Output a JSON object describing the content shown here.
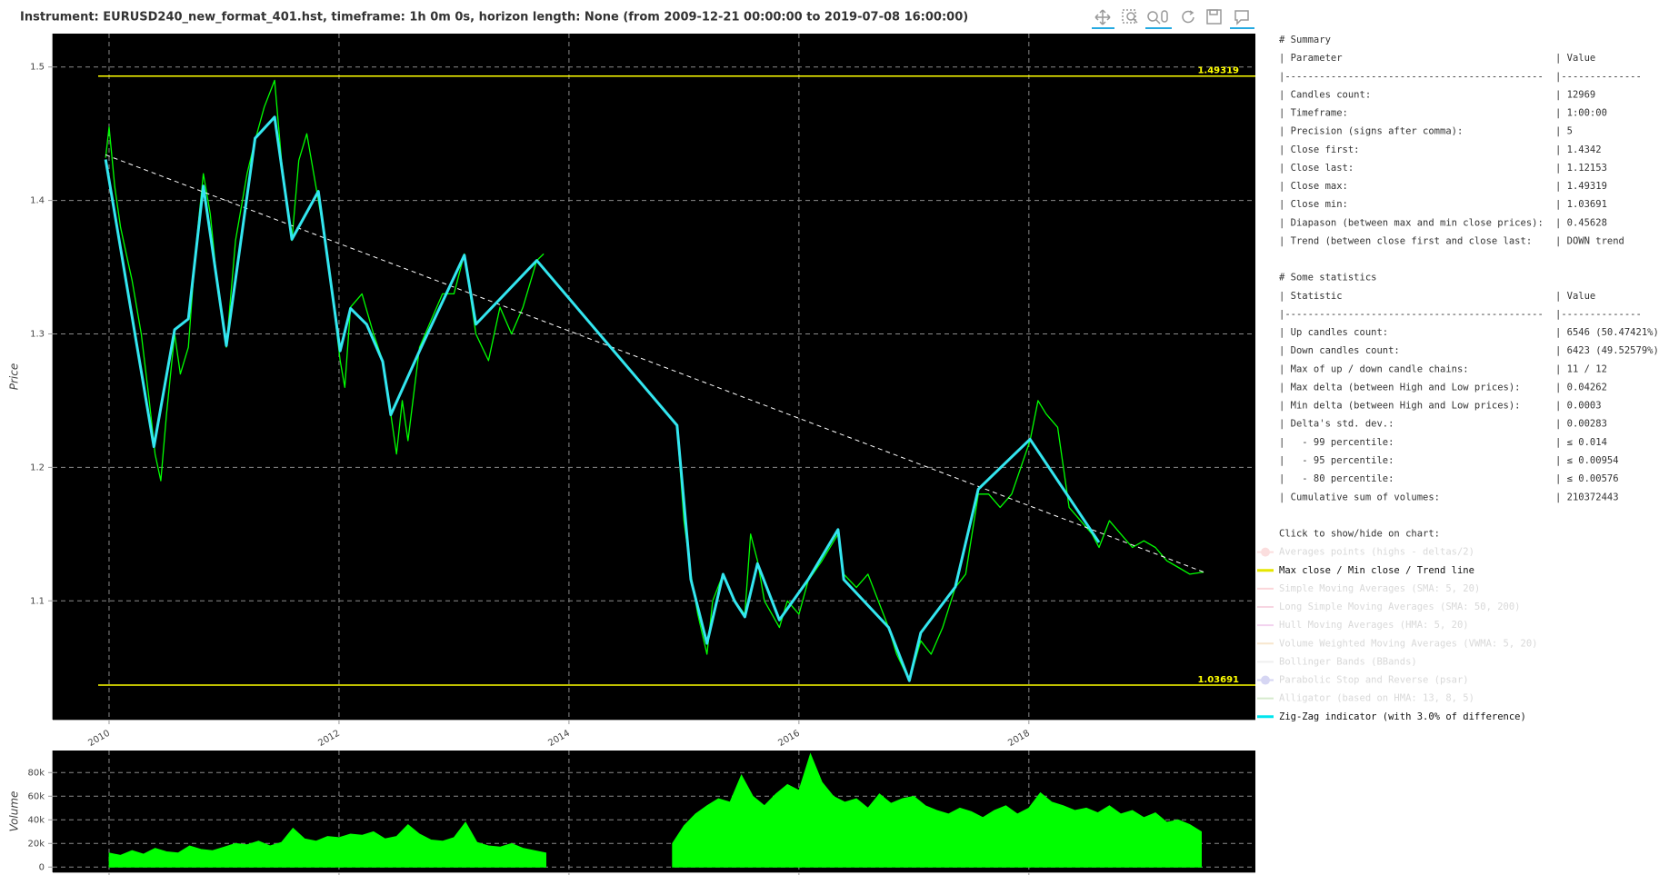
{
  "title": "Instrument: EURUSD240_new_format_401.hst, timeframe: 1h 0m 0s, horizon length: None (from 2009-12-21 00:00:00 to 2019-07-08 16:00:00)",
  "chart_data": [
    {
      "type": "line",
      "y_label": "Price",
      "background": "#000000",
      "grid": true,
      "show_xtick_labels": true,
      "xlim": [
        2009.51,
        2019.97
      ],
      "ylim": [
        1.011,
        1.525
      ],
      "xticks": [
        2010,
        2012,
        2014,
        2016,
        2018
      ],
      "yticks": [
        1.1,
        1.2,
        1.3,
        1.4,
        1.5
      ],
      "hlines": [
        {
          "value": 1.49319,
          "color": "#ffff00"
        },
        {
          "value": 1.03691,
          "color": "#ffff00"
        }
      ],
      "series": [
        {
          "color": "#00ff00",
          "line_width": 1.3,
          "x": [
            2009.97,
            2010.0,
            2010.05,
            2010.1,
            2010.15,
            2010.2,
            2010.28,
            2010.35,
            2010.4,
            2010.45,
            2010.5,
            2010.57,
            2010.62,
            2010.69,
            2010.75,
            2010.82,
            2010.88,
            2010.95,
            2011.02,
            2011.1,
            2011.2,
            2011.27,
            2011.35,
            2011.44,
            2011.5,
            2011.59,
            2011.65,
            2011.72,
            2011.82,
            2011.9,
            2012.01,
            2012.05,
            2012.1,
            2012.2,
            2012.3,
            2012.38,
            2012.45,
            2012.5,
            2012.55,
            2012.6,
            2012.7,
            2012.8,
            2012.9,
            2013.0,
            2013.09,
            2013.19,
            2013.3,
            2013.4,
            2013.5,
            2013.6,
            2013.72,
            2013.78,
            2014.35,
            2014.94,
            2015.0,
            2015.06,
            2015.12,
            2015.2,
            2015.25,
            2015.34,
            2015.44,
            2015.53,
            2015.58,
            2015.64,
            2015.7,
            2015.83,
            2015.9,
            2016.0,
            2016.08,
            2016.2,
            2016.34,
            2016.39,
            2016.5,
            2016.6,
            2016.78,
            2016.85,
            2016.96,
            2017.06,
            2017.15,
            2017.25,
            2017.36,
            2017.45,
            2017.56,
            2017.65,
            2017.75,
            2017.85,
            2018.01,
            2018.08,
            2018.15,
            2018.25,
            2018.35,
            2018.45,
            2018.55,
            2018.61,
            2018.7,
            2018.8,
            2018.9,
            2019.0,
            2019.1,
            2019.2,
            2019.3,
            2019.4,
            2019.52
          ],
          "values": [
            1.432,
            1.455,
            1.41,
            1.38,
            1.36,
            1.34,
            1.3,
            1.25,
            1.21,
            1.19,
            1.24,
            1.3,
            1.27,
            1.29,
            1.36,
            1.42,
            1.39,
            1.33,
            1.29,
            1.37,
            1.42,
            1.445,
            1.47,
            1.49,
            1.43,
            1.37,
            1.43,
            1.45,
            1.4,
            1.36,
            1.28,
            1.26,
            1.32,
            1.33,
            1.3,
            1.28,
            1.24,
            1.21,
            1.25,
            1.22,
            1.29,
            1.31,
            1.33,
            1.33,
            1.36,
            1.3,
            1.28,
            1.32,
            1.3,
            1.32,
            1.355,
            1.36,
            null,
            1.23,
            1.16,
            1.12,
            1.09,
            1.06,
            1.1,
            1.12,
            1.1,
            1.09,
            1.15,
            1.13,
            1.1,
            1.08,
            1.1,
            1.09,
            1.115,
            1.13,
            1.15,
            1.12,
            1.11,
            1.12,
            1.08,
            1.06,
            1.04,
            1.07,
            1.06,
            1.08,
            1.11,
            1.12,
            1.18,
            1.18,
            1.17,
            1.18,
            1.22,
            1.25,
            1.24,
            1.23,
            1.17,
            1.16,
            1.15,
            1.14,
            1.16,
            1.15,
            1.14,
            1.145,
            1.14,
            1.13,
            1.125,
            1.12,
            1.12153
          ]
        },
        {
          "color": "#ffffff",
          "line_width": 1,
          "dash": true,
          "x": [
            2009.97,
            2019.52
          ],
          "values": [
            1.4342,
            1.12153
          ]
        },
        {
          "color": "#33e6f0",
          "line_width": 3,
          "x": [
            2009.97,
            2010.39,
            2010.57,
            2010.69,
            2010.82,
            2011.02,
            2011.27,
            2011.44,
            2011.59,
            2011.82,
            2012.01,
            2012.1,
            2012.24,
            2012.38,
            2012.45,
            2012.7,
            2013.09,
            2013.19,
            2013.72,
            2014.94,
            2015.06,
            2015.2,
            2015.34,
            2015.44,
            2015.53,
            2015.64,
            2015.83,
            2016.08,
            2016.34,
            2016.39,
            2016.78,
            2016.96,
            2017.06,
            2017.36,
            2017.56,
            2018.01,
            2018.61
          ],
          "values": [
            1.4307,
            1.2155,
            1.3032,
            1.3112,
            1.4108,
            1.2912,
            1.4466,
            1.4625,
            1.3709,
            1.4068,
            1.2873,
            1.3191,
            1.3072,
            1.2793,
            1.2394,
            1.2873,
            1.359,
            1.3072,
            1.355,
            1.2315,
            1.1159,
            1.0681,
            1.1199,
            1.1,
            1.088,
            1.1279,
            1.0857,
            1.1159,
            1.1534,
            1.1159,
            1.0801,
            1.0402,
            1.0761,
            1.1104,
            1.1837,
            1.2211,
            1.1438
          ]
        }
      ]
    },
    {
      "type": "area",
      "y_label": "Volume",
      "background": "#000000",
      "grid": true,
      "show_xtick_labels": false,
      "xlim": [
        2009.51,
        2019.97
      ],
      "ylim": [
        -4400,
        98700
      ],
      "xticks": [
        2010,
        2012,
        2014,
        2016,
        2018
      ],
      "yticks": [
        0,
        {
          "value": 20000,
          "label": "20k"
        },
        {
          "value": 40000,
          "label": "40k"
        },
        {
          "value": 60000,
          "label": "60k"
        },
        {
          "value": 80000,
          "label": "80k"
        }
      ],
      "series": [
        {
          "color": "#00ff00",
          "x": [
            2010.0,
            2010.1,
            2010.2,
            2010.3,
            2010.4,
            2010.5,
            2010.6,
            2010.7,
            2010.8,
            2010.9,
            2011.0,
            2011.1,
            2011.2,
            2011.3,
            2011.4,
            2011.5,
            2011.6,
            2011.7,
            2011.8,
            2011.9,
            2012.0,
            2012.1,
            2012.2,
            2012.3,
            2012.4,
            2012.5,
            2012.6,
            2012.7,
            2012.8,
            2012.9,
            2013.0,
            2013.1,
            2013.2,
            2013.3,
            2013.4,
            2013.5,
            2013.6,
            2013.7,
            2013.8,
            2014.35,
            2014.9,
            2015.0,
            2015.1,
            2015.2,
            2015.3,
            2015.4,
            2015.5,
            2015.6,
            2015.7,
            2015.8,
            2015.9,
            2016.0,
            2016.1,
            2016.2,
            2016.3,
            2016.4,
            2016.5,
            2016.6,
            2016.7,
            2016.8,
            2016.9,
            2017.0,
            2017.1,
            2017.2,
            2017.3,
            2017.4,
            2017.5,
            2017.6,
            2017.7,
            2017.8,
            2017.9,
            2018.0,
            2018.1,
            2018.2,
            2018.3,
            2018.4,
            2018.5,
            2018.6,
            2018.7,
            2018.8,
            2018.9,
            2019.0,
            2019.1,
            2019.2,
            2019.3,
            2019.4,
            2019.5
          ],
          "values": [
            12000,
            10000,
            14000,
            11000,
            16000,
            13000,
            12000,
            18000,
            15000,
            14000,
            17000,
            20000,
            19000,
            22000,
            18000,
            21000,
            33000,
            24000,
            22000,
            26000,
            25000,
            28000,
            27000,
            30000,
            24000,
            26000,
            36000,
            28000,
            23000,
            22000,
            25000,
            38000,
            21000,
            18000,
            17000,
            20000,
            16000,
            14000,
            12000,
            null,
            20000,
            35000,
            45000,
            52000,
            58000,
            55000,
            78000,
            60000,
            52000,
            62000,
            70000,
            65000,
            96000,
            72000,
            60000,
            55000,
            58000,
            50000,
            62000,
            54000,
            58000,
            60000,
            52000,
            48000,
            45000,
            50000,
            47000,
            42000,
            48000,
            52000,
            45000,
            50000,
            63000,
            55000,
            52000,
            48000,
            50000,
            46000,
            52000,
            45000,
            48000,
            42000,
            46000,
            38000,
            40000,
            36000,
            30000
          ]
        }
      ]
    }
  ],
  "summary": {
    "heading": "# Summary",
    "header": [
      "| Parameter",
      "| Value"
    ],
    "separator": [
      "|---------------------------------------------",
      "|--------------"
    ],
    "rows": [
      [
        "| Candles count:",
        "| 12969"
      ],
      [
        "| Timeframe:",
        "| 1:00:00"
      ],
      [
        "| Precision (signs after comma):",
        "| 5"
      ],
      [
        "| Close first:",
        "| 1.4342"
      ],
      [
        "| Close last:",
        "| 1.12153"
      ],
      [
        "| Close max:",
        "| 1.49319"
      ],
      [
        "| Close min:",
        "| 1.03691"
      ],
      [
        "| Diapason (between max and min close prices):",
        "| 0.45628"
      ],
      [
        "| Trend (between close first and close last:",
        "| DOWN trend"
      ]
    ]
  },
  "statistics": {
    "heading": "# Some statistics",
    "header": [
      "| Statistic",
      "| Value"
    ],
    "separator": [
      "|---------------------------------------------",
      "|--------------"
    ],
    "rows": [
      [
        "| Up candles count:",
        "| 6546 (50.47421%)"
      ],
      [
        "| Down candles count:",
        "| 6423 (49.52579%)"
      ],
      [
        "| Max of up / down candle chains:",
        "| 11 / 12"
      ],
      [
        "| Max delta (between High and Low prices):",
        "| 0.04262"
      ],
      [
        "| Min delta (between High and Low prices):",
        "| 0.0003"
      ],
      [
        "| Delta's std. dev.:",
        "| 0.00283"
      ],
      [
        "|   - 99 percentile:",
        "| ≤ 0.014"
      ],
      [
        "|   - 95 percentile:",
        "| ≤ 0.00954"
      ],
      [
        "|   - 80 percentile:",
        "| ≤ 0.00576"
      ],
      [
        "| Cumulative sum of volumes:",
        "| 210372443"
      ]
    ]
  },
  "legend": {
    "title": "Click to show/hide on chart:",
    "items": [
      {
        "label": "Averages points (highs - deltas/2)",
        "color": "#f08080",
        "marker": "circle",
        "visible": false
      },
      {
        "label": "Max close / Min close / Trend line",
        "color": "#e6e600",
        "marker": "line",
        "visible": true
      },
      {
        "label": "Simple Moving Averages (SMA: 5, 20)",
        "color": "#f06070",
        "marker": "line",
        "visible": false
      },
      {
        "label": "Long Simple Moving Averages (SMA: 50, 200)",
        "color": "#e06090",
        "marker": "line",
        "visible": false
      },
      {
        "label": "Hull Moving Averages (HMA: 5, 20)",
        "color": "#d050c0",
        "marker": "line",
        "visible": false
      },
      {
        "label": "Volume Weighted Moving Averages (VWMA: 5, 20)",
        "color": "#e0a040",
        "marker": "line",
        "visible": false
      },
      {
        "label": "Bollinger Bands (BBands)",
        "color": "#c0c0c0",
        "marker": "line",
        "visible": false
      },
      {
        "label": "Parabolic Stop and Reverse (psar)",
        "color": "#6060d0",
        "marker": "circle",
        "visible": false
      },
      {
        "label": "Alligator (based on HMA: 13, 8, 5)",
        "color": "#60b040",
        "marker": "line",
        "visible": false
      },
      {
        "label": "Zig-Zag indicator (with 3.0% of difference)",
        "color": "#00e5ee",
        "marker": "line",
        "visible": true
      }
    ]
  }
}
